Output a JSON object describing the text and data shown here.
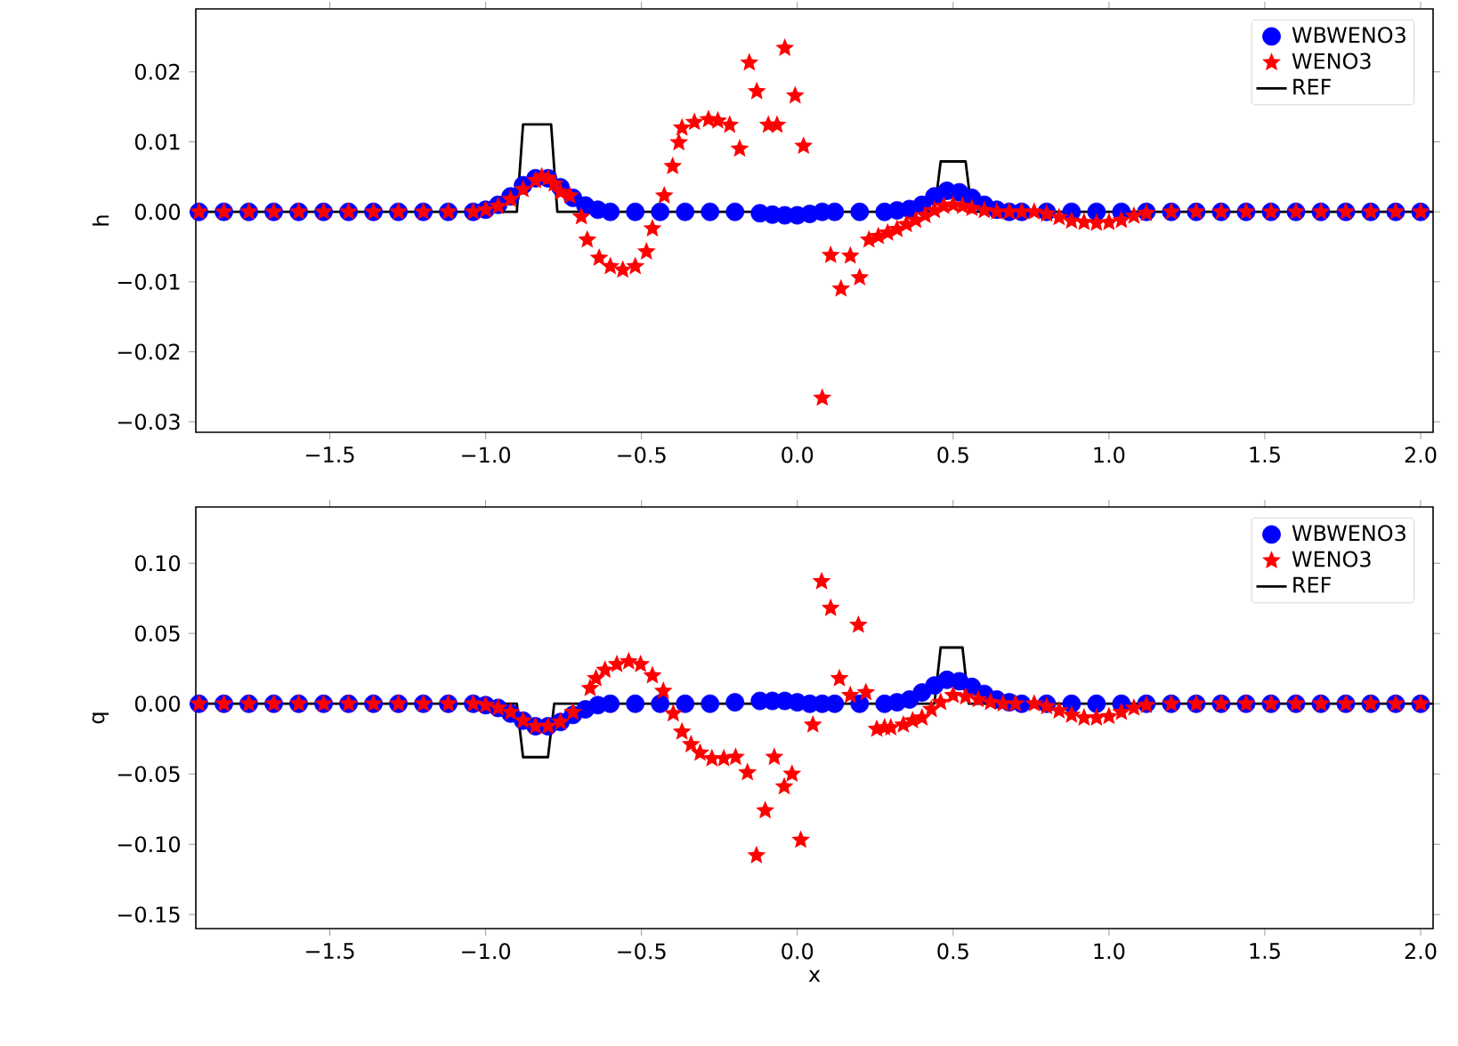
{
  "chart_data": [
    {
      "type": "scatter",
      "ylabel": "h",
      "legend": "top right",
      "xlim": [
        -1.93,
        2.04
      ],
      "ylim": [
        -0.0315,
        0.029
      ],
      "xticks": [
        {
          "value": -1.5,
          "label": "−1.5"
        },
        {
          "value": -1.0,
          "label": "−1.0"
        },
        {
          "value": -0.5,
          "label": "−0.5"
        },
        {
          "value": 0,
          "label": "0.0"
        },
        {
          "value": 0.5,
          "label": "0.5"
        },
        {
          "value": 1.0,
          "label": "1.0"
        },
        {
          "value": 1.5,
          "label": "1.5"
        },
        {
          "value": 2.0,
          "label": "2.0"
        }
      ],
      "yticks": [
        {
          "value": -0.03,
          "label": "−0.03"
        },
        {
          "value": -0.02,
          "label": "−0.02"
        },
        {
          "value": -0.01,
          "label": "−0.01"
        },
        {
          "value": 0,
          "label": "0.00"
        },
        {
          "value": 0.01,
          "label": "0.01"
        },
        {
          "value": 0.02,
          "label": "0.02"
        }
      ],
      "series": [
        {
          "name": "WBWENO3",
          "type": "scatter",
          "marker": "circle",
          "color": "#0000ff",
          "x": [
            -1.92,
            -1.84,
            -1.76,
            -1.68,
            -1.6,
            -1.52,
            -1.44,
            -1.36,
            -1.28,
            -1.2,
            -1.12,
            -1.04,
            -1.0,
            -0.96,
            -0.92,
            -0.88,
            -0.84,
            -0.8,
            -0.76,
            -0.72,
            -0.68,
            -0.64,
            -0.6,
            -0.52,
            -0.44,
            -0.36,
            -0.28,
            -0.2,
            -0.12,
            -0.08,
            -0.04,
            0.0,
            0.04,
            0.08,
            0.12,
            0.2,
            0.28,
            0.32,
            0.36,
            0.4,
            0.44,
            0.48,
            0.52,
            0.56,
            0.6,
            0.64,
            0.68,
            0.72,
            0.8,
            0.88,
            0.96,
            1.04,
            1.12,
            1.2,
            1.28,
            1.36,
            1.44,
            1.52,
            1.6,
            1.68,
            1.76,
            1.84,
            1.92,
            2.0
          ],
          "values": [
            0,
            0,
            0,
            0,
            0,
            0,
            0,
            0,
            0,
            0,
            0,
            0,
            0.0003,
            0.001,
            0.0022,
            0.0038,
            0.0048,
            0.0048,
            0.0035,
            0.002,
            0.0009,
            0.0003,
            0,
            0,
            0,
            0,
            0,
            0,
            -0.0002,
            -0.0004,
            -0.0005,
            -0.0005,
            -0.0003,
            0,
            0,
            0,
            0,
            0.0002,
            0.0004,
            0.001,
            0.0022,
            0.003,
            0.0028,
            0.002,
            0.001,
            0.0003,
            0,
            0,
            0,
            0,
            0,
            0,
            0,
            0,
            0,
            0,
            0,
            0,
            0,
            0,
            0,
            0,
            0,
            0
          ]
        },
        {
          "name": "WENO3",
          "type": "scatter",
          "marker": "star",
          "color": "#ff0000",
          "x": [
            -1.92,
            -1.84,
            -1.76,
            -1.68,
            -1.6,
            -1.52,
            -1.44,
            -1.36,
            -1.28,
            -1.2,
            -1.12,
            -1.04,
            -1.0,
            -0.96,
            -0.92,
            -0.88,
            -0.84,
            -0.82,
            -0.8,
            -0.78,
            -0.76,
            -0.73,
            -0.693,
            -0.674,
            -0.636,
            -0.6,
            -0.56,
            -0.52,
            -0.484,
            -0.465,
            -0.427,
            -0.4,
            -0.38,
            -0.37,
            -0.33,
            -0.285,
            -0.255,
            -0.217,
            -0.185,
            -0.154,
            -0.13,
            -0.093,
            -0.065,
            -0.04,
            -0.007,
            0.02,
            0.08,
            0.107,
            0.14,
            0.17,
            0.2,
            0.23,
            0.26,
            0.29,
            0.32,
            0.35,
            0.38,
            0.41,
            0.44,
            0.47,
            0.5,
            0.53,
            0.56,
            0.6,
            0.64,
            0.68,
            0.72,
            0.76,
            0.8,
            0.84,
            0.88,
            0.92,
            0.96,
            1.0,
            1.04,
            1.08,
            1.12,
            1.2,
            1.28,
            1.36,
            1.44,
            1.52,
            1.6,
            1.68,
            1.76,
            1.84,
            1.92,
            2.0
          ],
          "values": [
            0,
            0,
            0,
            0,
            0,
            0,
            0,
            0,
            0,
            0,
            0,
            0,
            0.0003,
            0.0008,
            0.0018,
            0.0032,
            0.0045,
            0.005,
            0.0048,
            0.004,
            0.0028,
            0.0023,
            -0.0007,
            -0.004,
            -0.0066,
            -0.0078,
            -0.0083,
            -0.0078,
            -0.0057,
            -0.0024,
            0.0023,
            0.0065,
            0.0099,
            0.012,
            0.0128,
            0.0132,
            0.013,
            0.0124,
            0.009,
            0.0213,
            0.0172,
            0.0124,
            0.0124,
            0.0234,
            0.0166,
            0.0094,
            -0.0266,
            -0.0062,
            -0.011,
            -0.0063,
            -0.0094,
            -0.004,
            -0.0035,
            -0.003,
            -0.0025,
            -0.0018,
            -0.0012,
            -0.0005,
            0.0002,
            0.0008,
            0.001,
            0.0008,
            0.0005,
            0.0002,
            0,
            0,
            0,
            0,
            -0.0003,
            -0.0008,
            -0.0013,
            -0.0015,
            -0.0016,
            -0.0015,
            -0.0012,
            -0.0006,
            -0.0002,
            0,
            0,
            0,
            0,
            0,
            0,
            0,
            0,
            0,
            0,
            0
          ]
        },
        {
          "name": "REF",
          "type": "line",
          "line_style": "solid",
          "color": "#000000",
          "x": [
            -1.93,
            -0.9,
            -0.88,
            -0.79,
            -0.77,
            -0.3,
            0.1,
            0.44,
            0.46,
            0.54,
            0.56,
            2.04
          ],
          "values": [
            0,
            0,
            0.0125,
            0.0125,
            0,
            0,
            0,
            0,
            0.0072,
            0.0072,
            0,
            0
          ]
        }
      ]
    },
    {
      "type": "scatter",
      "xlabel": "x",
      "ylabel": "q",
      "legend": "top right",
      "xlim": [
        -1.93,
        2.04
      ],
      "ylim": [
        -0.16,
        0.14
      ],
      "xticks": [
        {
          "value": -1.5,
          "label": "−1.5"
        },
        {
          "value": -1.0,
          "label": "−1.0"
        },
        {
          "value": -0.5,
          "label": "−0.5"
        },
        {
          "value": 0,
          "label": "0.0"
        },
        {
          "value": 0.5,
          "label": "0.5"
        },
        {
          "value": 1.0,
          "label": "1.0"
        },
        {
          "value": 1.5,
          "label": "1.5"
        },
        {
          "value": 2.0,
          "label": "2.0"
        }
      ],
      "yticks": [
        {
          "value": -0.15,
          "label": "−0.15"
        },
        {
          "value": -0.1,
          "label": "−0.10"
        },
        {
          "value": -0.05,
          "label": "−0.05"
        },
        {
          "value": 0,
          "label": "0.00"
        },
        {
          "value": 0.05,
          "label": "0.05"
        },
        {
          "value": 0.1,
          "label": "0.10"
        }
      ],
      "series": [
        {
          "name": "WBWENO3",
          "type": "scatter",
          "marker": "circle",
          "color": "#0000ff",
          "x": [
            -1.92,
            -1.84,
            -1.76,
            -1.68,
            -1.6,
            -1.52,
            -1.44,
            -1.36,
            -1.28,
            -1.2,
            -1.12,
            -1.04,
            -1.0,
            -0.96,
            -0.92,
            -0.88,
            -0.84,
            -0.8,
            -0.76,
            -0.72,
            -0.68,
            -0.64,
            -0.6,
            -0.52,
            -0.44,
            -0.36,
            -0.28,
            -0.2,
            -0.12,
            -0.08,
            -0.04,
            0.0,
            0.04,
            0.08,
            0.12,
            0.2,
            0.28,
            0.32,
            0.36,
            0.4,
            0.44,
            0.48,
            0.52,
            0.56,
            0.6,
            0.64,
            0.68,
            0.72,
            0.8,
            0.88,
            0.96,
            1.04,
            1.12,
            1.2,
            1.28,
            1.36,
            1.44,
            1.52,
            1.6,
            1.68,
            1.76,
            1.84,
            1.92,
            2.0
          ],
          "values": [
            0,
            0,
            0,
            0,
            0,
            0,
            0,
            0,
            0,
            0,
            0,
            0,
            -0.001,
            -0.003,
            -0.007,
            -0.012,
            -0.016,
            -0.016,
            -0.013,
            -0.008,
            -0.004,
            -0.001,
            0,
            0,
            0,
            0,
            0,
            0.001,
            0.002,
            0.002,
            0.002,
            0.001,
            0,
            0,
            0,
            0,
            0,
            0.001,
            0.003,
            0.008,
            0.013,
            0.017,
            0.016,
            0.012,
            0.007,
            0.003,
            0.001,
            0,
            0,
            0,
            0,
            0,
            0,
            0,
            0,
            0,
            0,
            0,
            0,
            0,
            0,
            0,
            0,
            0
          ]
        },
        {
          "name": "WENO3",
          "type": "scatter",
          "marker": "star",
          "color": "#ff0000",
          "x": [
            -1.92,
            -1.84,
            -1.76,
            -1.68,
            -1.6,
            -1.52,
            -1.44,
            -1.36,
            -1.28,
            -1.2,
            -1.12,
            -1.04,
            -1.0,
            -0.96,
            -0.92,
            -0.88,
            -0.84,
            -0.8,
            -0.76,
            -0.72,
            -0.665,
            -0.646,
            -0.617,
            -0.579,
            -0.541,
            -0.503,
            -0.465,
            -0.43,
            -0.398,
            -0.37,
            -0.341,
            -0.312,
            -0.274,
            -0.236,
            -0.198,
            -0.16,
            -0.131,
            -0.103,
            -0.074,
            -0.042,
            -0.017,
            0.011,
            0.05,
            0.078,
            0.107,
            0.135,
            0.17,
            0.196,
            0.22,
            0.255,
            0.28,
            0.3,
            0.34,
            0.37,
            0.4,
            0.43,
            0.46,
            0.5,
            0.54,
            0.58,
            0.62,
            0.66,
            0.7,
            0.76,
            0.8,
            0.84,
            0.88,
            0.92,
            0.96,
            1.0,
            1.04,
            1.08,
            1.12,
            1.2,
            1.28,
            1.36,
            1.44,
            1.52,
            1.6,
            1.68,
            1.76,
            1.84,
            1.92,
            2.0
          ],
          "values": [
            0,
            0,
            0,
            0,
            0,
            0,
            0,
            0,
            0,
            0,
            0,
            0,
            -0.001,
            -0.003,
            -0.006,
            -0.012,
            -0.016,
            -0.016,
            -0.013,
            -0.006,
            0.011,
            0.018,
            0.024,
            0.028,
            0.03,
            0.028,
            0.02,
            0.009,
            -0.007,
            -0.02,
            -0.029,
            -0.035,
            -0.039,
            -0.039,
            -0.038,
            -0.049,
            -0.108,
            -0.076,
            -0.038,
            -0.059,
            -0.05,
            -0.097,
            -0.015,
            0.087,
            0.068,
            0.018,
            0.006,
            0.056,
            0.008,
            -0.018,
            -0.017,
            -0.017,
            -0.015,
            -0.012,
            -0.01,
            -0.004,
            0.001,
            0.006,
            0.005,
            0.003,
            0.001,
            0,
            0,
            0,
            -0.002,
            -0.005,
            -0.008,
            -0.01,
            -0.01,
            -0.009,
            -0.006,
            -0.003,
            -0.001,
            0,
            0,
            0,
            0,
            0,
            0,
            0,
            0,
            0,
            0,
            0
          ]
        },
        {
          "name": "REF",
          "type": "line",
          "line_style": "solid",
          "color": "#000000",
          "x": [
            -1.93,
            -0.9,
            -0.88,
            -0.8,
            -0.78,
            0.44,
            0.46,
            0.53,
            0.55,
            2.04
          ],
          "values": [
            0,
            0,
            -0.038,
            -0.038,
            0,
            0,
            0.04,
            0.04,
            0,
            0
          ]
        }
      ]
    }
  ]
}
